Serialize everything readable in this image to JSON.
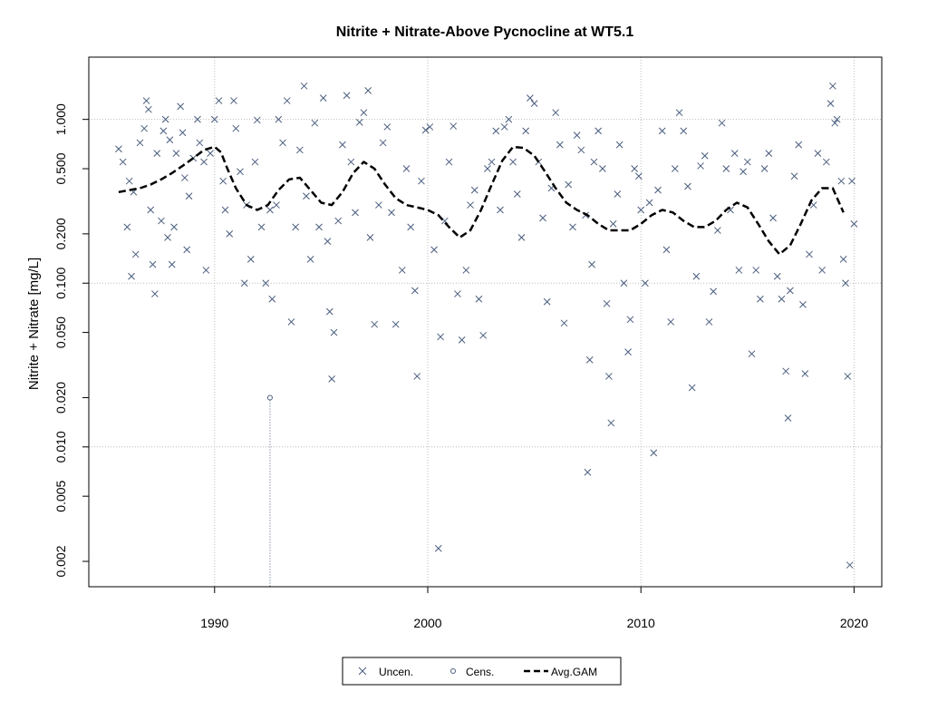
{
  "chart_data": {
    "type": "scatter",
    "title": "Nitrite + Nitrate-Above Pycnocline at WT5.1",
    "xlabel": "",
    "ylabel": "Nitrite + Nitrate [mg/L]",
    "y_scale": "log",
    "xlim": [
      1984.1,
      2021.3
    ],
    "ylim": [
      0.0014,
      2.4
    ],
    "x_ticks": [
      1990,
      2000,
      2010,
      2020
    ],
    "x_tick_labels": [
      "1990",
      "2000",
      "2010",
      "2020"
    ],
    "y_ticks": [
      0.002,
      0.005,
      0.01,
      0.02,
      0.05,
      0.1,
      0.2,
      0.5,
      1.0
    ],
    "y_tick_labels": [
      "0.002",
      "0.005",
      "0.010",
      "0.020",
      "0.050",
      "0.100",
      "0.200",
      "0.500",
      "1.000"
    ],
    "grid": true,
    "legend_position": "bottom-center",
    "legend": [
      {
        "label": "Uncen.",
        "marker": "x"
      },
      {
        "label": "Cens.",
        "marker": "circle"
      },
      {
        "label": "Avg.GAM",
        "marker": "dashed-line"
      }
    ],
    "colors": {
      "points": "#4a5d7e",
      "gam": "#000000",
      "grid": "#bbbbbb"
    },
    "series": [
      {
        "name": "Uncen.",
        "points": [
          [
            1985.5,
            0.66
          ],
          [
            1985.7,
            0.55
          ],
          [
            1985.9,
            0.22
          ],
          [
            1986.0,
            0.42
          ],
          [
            1986.1,
            0.11
          ],
          [
            1986.2,
            0.36
          ],
          [
            1986.3,
            0.15
          ],
          [
            1986.5,
            0.72
          ],
          [
            1986.7,
            0.88
          ],
          [
            1986.8,
            1.3
          ],
          [
            1986.9,
            1.15
          ],
          [
            1987.0,
            0.28
          ],
          [
            1987.1,
            0.13
          ],
          [
            1987.2,
            0.086
          ],
          [
            1987.3,
            0.62
          ],
          [
            1987.5,
            0.24
          ],
          [
            1987.6,
            0.85
          ],
          [
            1987.7,
            1.0
          ],
          [
            1987.8,
            0.19
          ],
          [
            1987.9,
            0.75
          ],
          [
            1988.0,
            0.13
          ],
          [
            1988.1,
            0.22
          ],
          [
            1988.2,
            0.62
          ],
          [
            1988.4,
            1.2
          ],
          [
            1988.5,
            0.83
          ],
          [
            1988.6,
            0.44
          ],
          [
            1988.7,
            0.16
          ],
          [
            1988.8,
            0.34
          ],
          [
            1989.0,
            0.58
          ],
          [
            1989.2,
            1.0
          ],
          [
            1989.3,
            0.72
          ],
          [
            1989.5,
            0.55
          ],
          [
            1989.6,
            0.12
          ],
          [
            1989.8,
            0.62
          ],
          [
            1990.0,
            1.0
          ],
          [
            1990.2,
            1.3
          ],
          [
            1990.4,
            0.42
          ],
          [
            1990.5,
            0.28
          ],
          [
            1990.7,
            0.2
          ],
          [
            1990.9,
            1.3
          ],
          [
            1991.0,
            0.88
          ],
          [
            1991.2,
            0.48
          ],
          [
            1991.4,
            0.1
          ],
          [
            1991.5,
            0.3
          ],
          [
            1991.7,
            0.14
          ],
          [
            1991.9,
            0.55
          ],
          [
            1992.0,
            0.99
          ],
          [
            1992.2,
            0.22
          ],
          [
            1992.4,
            0.1
          ],
          [
            1992.6,
            0.28
          ],
          [
            1992.7,
            0.08
          ],
          [
            1992.9,
            0.3
          ],
          [
            1993.0,
            1.0
          ],
          [
            1993.2,
            0.72
          ],
          [
            1993.4,
            1.3
          ],
          [
            1993.6,
            0.058
          ],
          [
            1993.8,
            0.22
          ],
          [
            1994.0,
            0.65
          ],
          [
            1994.2,
            1.6
          ],
          [
            1994.3,
            0.34
          ],
          [
            1994.5,
            0.14
          ],
          [
            1994.7,
            0.95
          ],
          [
            1994.9,
            0.22
          ],
          [
            1995.1,
            1.35
          ],
          [
            1995.3,
            0.18
          ],
          [
            1995.4,
            0.067
          ],
          [
            1995.5,
            0.026
          ],
          [
            1995.6,
            0.05
          ],
          [
            1995.8,
            0.24
          ],
          [
            1996.0,
            0.7
          ],
          [
            1996.2,
            1.4
          ],
          [
            1996.4,
            0.55
          ],
          [
            1996.6,
            0.27
          ],
          [
            1996.8,
            0.96
          ],
          [
            1997.0,
            1.1
          ],
          [
            1997.2,
            1.5
          ],
          [
            1997.3,
            0.19
          ],
          [
            1997.5,
            0.056
          ],
          [
            1997.7,
            0.3
          ],
          [
            1997.9,
            0.72
          ],
          [
            1998.1,
            0.9
          ],
          [
            1998.3,
            0.27
          ],
          [
            1998.5,
            0.056
          ],
          [
            1998.8,
            0.12
          ],
          [
            1999.0,
            0.5
          ],
          [
            1999.2,
            0.22
          ],
          [
            1999.4,
            0.09
          ],
          [
            1999.5,
            0.027
          ],
          [
            1999.7,
            0.42
          ],
          [
            1999.9,
            0.86
          ],
          [
            2000.1,
            0.9
          ],
          [
            2000.3,
            0.16
          ],
          [
            2000.5,
            0.0024
          ],
          [
            2000.6,
            0.047
          ],
          [
            2000.8,
            0.24
          ],
          [
            2001.0,
            0.55
          ],
          [
            2001.2,
            0.91
          ],
          [
            2001.4,
            0.086
          ],
          [
            2001.6,
            0.045
          ],
          [
            2001.8,
            0.12
          ],
          [
            2002.0,
            0.3
          ],
          [
            2002.2,
            0.37
          ],
          [
            2002.4,
            0.08
          ],
          [
            2002.6,
            0.048
          ],
          [
            2002.8,
            0.5
          ],
          [
            2003.0,
            0.55
          ],
          [
            2003.2,
            0.85
          ],
          [
            2003.4,
            0.28
          ],
          [
            2003.6,
            0.9
          ],
          [
            2003.8,
            1.0
          ],
          [
            2004.0,
            0.55
          ],
          [
            2004.2,
            0.35
          ],
          [
            2004.4,
            0.19
          ],
          [
            2004.6,
            0.85
          ],
          [
            2004.8,
            1.35
          ],
          [
            2005.0,
            1.25
          ],
          [
            2005.2,
            0.55
          ],
          [
            2005.4,
            0.25
          ],
          [
            2005.6,
            0.077
          ],
          [
            2005.8,
            0.38
          ],
          [
            2006.0,
            1.1
          ],
          [
            2006.2,
            0.7
          ],
          [
            2006.4,
            0.057
          ],
          [
            2006.6,
            0.4
          ],
          [
            2006.8,
            0.22
          ],
          [
            2007.0,
            0.8
          ],
          [
            2007.2,
            0.65
          ],
          [
            2007.4,
            0.26
          ],
          [
            2007.5,
            0.007
          ],
          [
            2007.6,
            0.034
          ],
          [
            2007.7,
            0.13
          ],
          [
            2007.8,
            0.55
          ],
          [
            2008.0,
            0.85
          ],
          [
            2008.2,
            0.5
          ],
          [
            2008.4,
            0.075
          ],
          [
            2008.5,
            0.027
          ],
          [
            2008.6,
            0.014
          ],
          [
            2008.7,
            0.23
          ],
          [
            2008.9,
            0.35
          ],
          [
            2009.0,
            0.7
          ],
          [
            2009.2,
            0.1
          ],
          [
            2009.4,
            0.038
          ],
          [
            2009.5,
            0.06
          ],
          [
            2009.7,
            0.5
          ],
          [
            2009.9,
            0.45
          ],
          [
            2010.0,
            0.28
          ],
          [
            2010.2,
            0.1
          ],
          [
            2010.4,
            0.31
          ],
          [
            2010.6,
            0.0092
          ],
          [
            2010.8,
            0.37
          ],
          [
            2011.0,
            0.85
          ],
          [
            2011.2,
            0.16
          ],
          [
            2011.4,
            0.058
          ],
          [
            2011.6,
            0.5
          ],
          [
            2011.8,
            1.1
          ],
          [
            2012.0,
            0.85
          ],
          [
            2012.2,
            0.39
          ],
          [
            2012.4,
            0.023
          ],
          [
            2012.6,
            0.11
          ],
          [
            2012.8,
            0.52
          ],
          [
            2013.0,
            0.6
          ],
          [
            2013.2,
            0.058
          ],
          [
            2013.4,
            0.089
          ],
          [
            2013.6,
            0.21
          ],
          [
            2013.8,
            0.95
          ],
          [
            2014.0,
            0.5
          ],
          [
            2014.2,
            0.28
          ],
          [
            2014.4,
            0.62
          ],
          [
            2014.6,
            0.12
          ],
          [
            2014.8,
            0.48
          ],
          [
            2015.0,
            0.55
          ],
          [
            2015.2,
            0.037
          ],
          [
            2015.4,
            0.12
          ],
          [
            2015.6,
            0.08
          ],
          [
            2015.8,
            0.5
          ],
          [
            2016.0,
            0.62
          ],
          [
            2016.2,
            0.25
          ],
          [
            2016.4,
            0.11
          ],
          [
            2016.6,
            0.08
          ],
          [
            2016.8,
            0.029
          ],
          [
            2016.9,
            0.015
          ],
          [
            2017.0,
            0.09
          ],
          [
            2017.2,
            0.45
          ],
          [
            2017.4,
            0.7
          ],
          [
            2017.6,
            0.074
          ],
          [
            2017.7,
            0.028
          ],
          [
            2017.9,
            0.15
          ],
          [
            2018.1,
            0.3
          ],
          [
            2018.3,
            0.62
          ],
          [
            2018.5,
            0.12
          ],
          [
            2018.7,
            0.55
          ],
          [
            2018.9,
            1.25
          ],
          [
            2019.0,
            1.6
          ],
          [
            2019.1,
            0.95
          ],
          [
            2019.2,
            1.0
          ],
          [
            2019.4,
            0.42
          ],
          [
            2019.5,
            0.14
          ],
          [
            2019.6,
            0.1
          ],
          [
            2019.7,
            0.027
          ],
          [
            2019.8,
            0.0019
          ],
          [
            2019.9,
            0.42
          ],
          [
            2020.0,
            0.23
          ]
        ]
      },
      {
        "name": "Cens.",
        "points": [
          [
            1992.6,
            0.02
          ]
        ]
      },
      {
        "name": "Avg.GAM",
        "points": [
          [
            1985.5,
            0.36
          ],
          [
            1986.0,
            0.37
          ],
          [
            1986.5,
            0.38
          ],
          [
            1987.0,
            0.4
          ],
          [
            1987.5,
            0.43
          ],
          [
            1988.0,
            0.47
          ],
          [
            1988.5,
            0.52
          ],
          [
            1989.0,
            0.58
          ],
          [
            1989.5,
            0.65
          ],
          [
            1990.0,
            0.68
          ],
          [
            1990.3,
            0.63
          ],
          [
            1990.6,
            0.5
          ],
          [
            1991.0,
            0.38
          ],
          [
            1991.5,
            0.3
          ],
          [
            1992.0,
            0.28
          ],
          [
            1992.5,
            0.3
          ],
          [
            1993.0,
            0.37
          ],
          [
            1993.5,
            0.43
          ],
          [
            1994.0,
            0.44
          ],
          [
            1994.5,
            0.37
          ],
          [
            1995.0,
            0.31
          ],
          [
            1995.5,
            0.3
          ],
          [
            1996.0,
            0.36
          ],
          [
            1996.5,
            0.47
          ],
          [
            1997.0,
            0.55
          ],
          [
            1997.5,
            0.5
          ],
          [
            1998.0,
            0.4
          ],
          [
            1998.5,
            0.33
          ],
          [
            1999.0,
            0.3
          ],
          [
            1999.5,
            0.29
          ],
          [
            2000.0,
            0.28
          ],
          [
            2000.5,
            0.26
          ],
          [
            2001.0,
            0.22
          ],
          [
            2001.5,
            0.19
          ],
          [
            2002.0,
            0.21
          ],
          [
            2002.5,
            0.28
          ],
          [
            2003.0,
            0.4
          ],
          [
            2003.5,
            0.56
          ],
          [
            2004.0,
            0.68
          ],
          [
            2004.5,
            0.67
          ],
          [
            2005.0,
            0.6
          ],
          [
            2005.5,
            0.48
          ],
          [
            2006.0,
            0.38
          ],
          [
            2006.5,
            0.31
          ],
          [
            2007.0,
            0.28
          ],
          [
            2007.5,
            0.26
          ],
          [
            2008.0,
            0.23
          ],
          [
            2008.5,
            0.21
          ],
          [
            2009.0,
            0.21
          ],
          [
            2009.5,
            0.21
          ],
          [
            2010.0,
            0.23
          ],
          [
            2010.5,
            0.26
          ],
          [
            2011.0,
            0.28
          ],
          [
            2011.5,
            0.27
          ],
          [
            2012.0,
            0.24
          ],
          [
            2012.5,
            0.22
          ],
          [
            2013.0,
            0.22
          ],
          [
            2013.5,
            0.24
          ],
          [
            2014.0,
            0.28
          ],
          [
            2014.5,
            0.31
          ],
          [
            2015.0,
            0.29
          ],
          [
            2015.5,
            0.23
          ],
          [
            2016.0,
            0.18
          ],
          [
            2016.5,
            0.15
          ],
          [
            2017.0,
            0.17
          ],
          [
            2017.5,
            0.23
          ],
          [
            2018.0,
            0.32
          ],
          [
            2018.5,
            0.38
          ],
          [
            2019.0,
            0.38
          ],
          [
            2019.5,
            0.27
          ]
        ]
      }
    ]
  }
}
